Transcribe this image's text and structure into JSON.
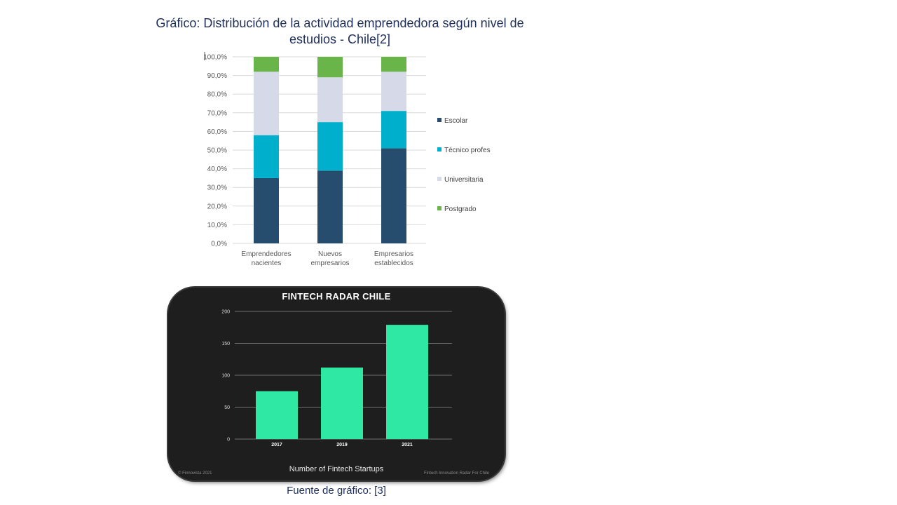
{
  "slide": {
    "title": "Gráfico: Distribución de la actividad emprendedora según nivel de estudios - Chile[2]",
    "caption": "Fuente de gráfico: [3]"
  },
  "chart_data": [
    {
      "type": "bar",
      "stacked": true,
      "title": "",
      "xlabel": "",
      "ylabel": "",
      "categories": [
        [
          "Emprendedores",
          "nacientes"
        ],
        [
          "Nuevos",
          "empresarios"
        ],
        [
          "Empresarios",
          "establecidos"
        ]
      ],
      "series": [
        {
          "name": "Escolar",
          "color": "#264c6e",
          "values": [
            35,
            39,
            51
          ]
        },
        {
          "name": "Técnico profes",
          "color": "#00afcb",
          "values": [
            23,
            26,
            20
          ]
        },
        {
          "name": "Universitaria",
          "color": "#d5d9e8",
          "values": [
            34,
            24,
            21
          ]
        },
        {
          "name": "Postgrado",
          "color": "#6ab54a",
          "values": [
            8,
            11,
            8
          ]
        }
      ],
      "ylim": [
        0,
        100
      ],
      "yticks": [
        "0,0%",
        "10,0%",
        "20,0%",
        "30,0%",
        "40,0%",
        "50,0%",
        "60,0%",
        "70,0%",
        "80,0%",
        "90,0%",
        "100,0%"
      ],
      "grid": true,
      "legend": "right"
    },
    {
      "type": "bar",
      "title": "FINTECH RADAR CHILE",
      "xlabel": "Number of Fintech Startups",
      "ylabel": "",
      "categories": [
        "2017",
        "2019",
        "2021"
      ],
      "values": [
        75,
        112,
        179
      ],
      "ylim": [
        0,
        200
      ],
      "yticks": [
        "0",
        "50",
        "100",
        "150",
        "200"
      ],
      "bar_color": "#2fe8a4",
      "background": "#1e1e1e",
      "grid": true,
      "footer_left": "© Finnovista 2021",
      "footer_right": "Fintech Innovation Radar For Chile"
    }
  ]
}
